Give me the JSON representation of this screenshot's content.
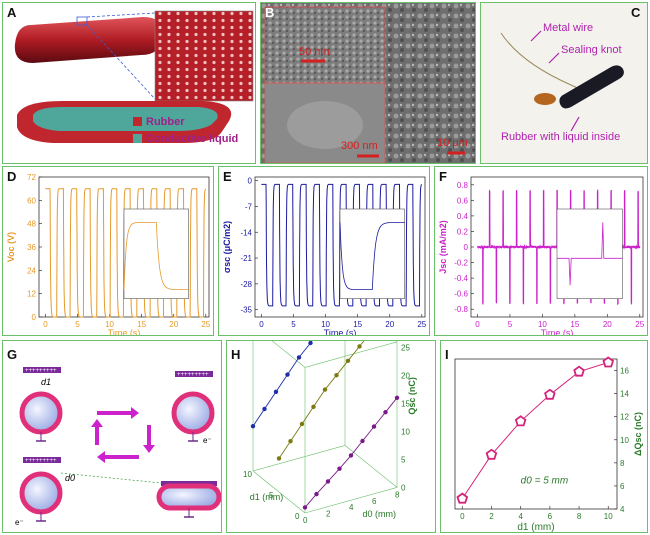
{
  "panels": {
    "A": {
      "label": "A",
      "legend": [
        "Rubber",
        "Conductive liquid"
      ],
      "colors": {
        "rubber": "#c0262d",
        "liquid": "#4fa69a"
      }
    },
    "B": {
      "label": "B",
      "scalebars": [
        "50 nm",
        "300 nm",
        "10 μm"
      ]
    },
    "C": {
      "label": "C",
      "annotations": [
        "Metal wire",
        "Sealing knot",
        "Rubber with liquid inside"
      ]
    },
    "D": {
      "label": "D",
      "ylabel": "Voc (V)",
      "xlabel": "Time (s)",
      "color": "#e69a2b"
    },
    "E": {
      "label": "E",
      "ylabel": "σsc (μC/m2)",
      "xlabel": "Time (s)",
      "color": "#1a1aa0"
    },
    "F": {
      "label": "F",
      "ylabel": "Jsc (mA/m2)",
      "xlabel": "Time (s)",
      "color": "#cc22cc"
    },
    "G": {
      "label": "G",
      "d1": "d1",
      "d0": "d0",
      "electron": "e⁻"
    },
    "H": {
      "label": "H",
      "xlabel": "d0 (mm)",
      "ylabel": "d1 (mm)",
      "zlabel": "Qsc (nC)"
    },
    "I": {
      "label": "I",
      "xlabel": "d1 (mm)",
      "ylabel": "ΔQsc (nC)",
      "annotation": "d0 = 5 mm",
      "color": "#d4237a"
    }
  },
  "chart_data": [
    {
      "panel": "D",
      "type": "line",
      "xlabel": "Time (s)",
      "ylabel": "Voc (V)",
      "xlim": [
        -1,
        25.5
      ],
      "ylim": [
        0,
        72
      ],
      "xticks": [
        0,
        5,
        10,
        15,
        20,
        25
      ],
      "yticks": [
        0,
        12,
        24,
        36,
        48,
        60,
        72
      ],
      "period_s": 2.08,
      "high": 66,
      "low": 0
    },
    {
      "panel": "E",
      "type": "line",
      "xlabel": "Time (s)",
      "ylabel": "σsc (μC/m2)",
      "xlim": [
        -1,
        25.5
      ],
      "ylim": [
        -37,
        1
      ],
      "xticks": [
        0,
        5,
        10,
        15,
        20,
        25
      ],
      "yticks": [
        0,
        -7,
        -14,
        -21,
        -28,
        -35
      ],
      "period_s": 2.08,
      "high": -1,
      "low": -34
    },
    {
      "panel": "F",
      "type": "line",
      "xlabel": "Time (s)",
      "ylabel": "Jsc (mA/m2)",
      "xlim": [
        -1,
        25.5
      ],
      "ylim": [
        -0.9,
        0.9
      ],
      "xticks": [
        0,
        5,
        10,
        15,
        20,
        25
      ],
      "yticks": [
        0.8,
        0.6,
        0.4,
        0.2,
        0.0,
        -0.2,
        -0.4,
        -0.6,
        -0.8
      ],
      "period_s": 2.08,
      "peak_pos": 0.72,
      "peak_neg": -0.72
    },
    {
      "panel": "H",
      "type": "scatter",
      "xlabel": "d0 (mm)",
      "ylabel": "d1 (mm)",
      "zlabel": "Qsc (nC)",
      "x_ticks": [
        0,
        2,
        4,
        6,
        8
      ],
      "y_ticks": [
        0,
        5,
        10
      ],
      "z_ticks": [
        0,
        5,
        10,
        15,
        20,
        25
      ],
      "series": [
        {
          "d1": 10,
          "color": "#1c2fa8",
          "d0": [
            0,
            1,
            2,
            3,
            4,
            5,
            6,
            7,
            8
          ],
          "q": [
            8,
            10.5,
            13,
            15.5,
            18,
            20,
            22.5,
            24.5,
            26.5
          ]
        },
        {
          "d1": 5,
          "color": "#7a7a10",
          "d0": [
            0,
            1,
            2,
            3,
            4,
            5,
            6,
            7,
            8
          ],
          "q": [
            6,
            8.5,
            11,
            13.5,
            16,
            18,
            20,
            22,
            24
          ]
        },
        {
          "d1": 0,
          "color": "#7a1a8a",
          "d0": [
            0,
            1,
            2,
            3,
            4,
            5,
            6,
            7,
            8
          ],
          "q": [
            1,
            2.8,
            4.5,
            6.2,
            8,
            10,
            12,
            14,
            16
          ]
        }
      ]
    },
    {
      "panel": "I",
      "type": "line",
      "xlabel": "d1 (mm)",
      "ylabel": "ΔQsc (nC)",
      "x": [
        0,
        2,
        4,
        6,
        8,
        10
      ],
      "y": [
        4.9,
        8.7,
        11.6,
        13.9,
        15.9,
        16.7
      ],
      "xlim": [
        -0.5,
        10.6
      ],
      "ylim": [
        4,
        17
      ],
      "xticks": [
        0,
        2,
        4,
        6,
        8,
        10
      ],
      "yticks": [
        4,
        6,
        8,
        10,
        12,
        14,
        16
      ]
    }
  ]
}
